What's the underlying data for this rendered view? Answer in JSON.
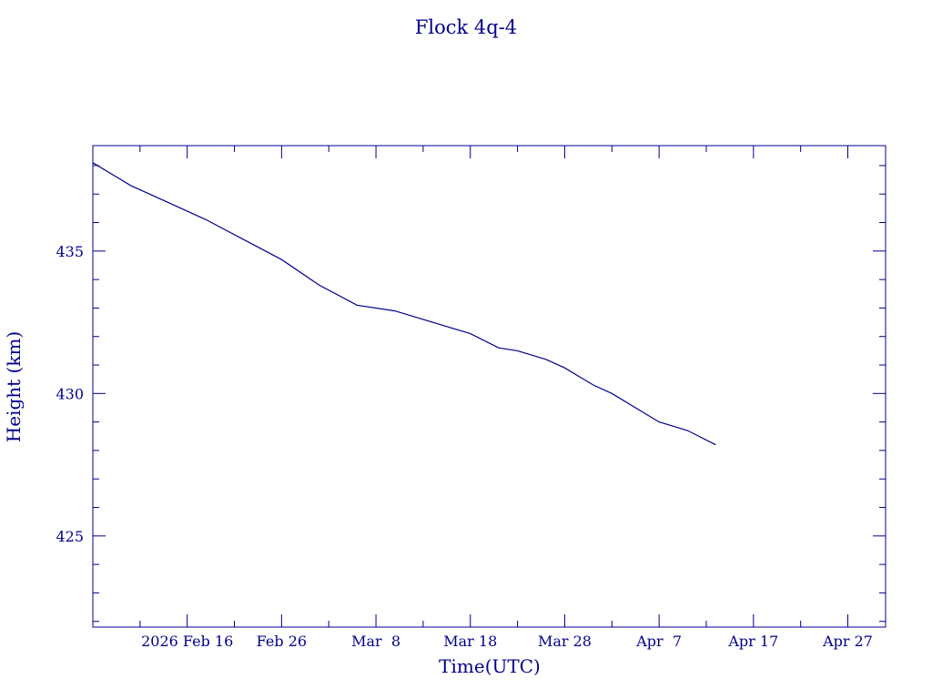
{
  "chart_data": {
    "type": "line",
    "title": "Flock 4q-4",
    "xlabel": "Time(UTC)",
    "ylabel": "Height (km)",
    "color": "#00008b",
    "x_range": [
      "2026-02-06",
      "2026-05-01"
    ],
    "ylim": [
      421.8,
      438.7
    ],
    "y_ticks": [
      425,
      430,
      435
    ],
    "x_ticks": [
      {
        "date": "2026-02-16",
        "label": "2026 Feb 16"
      },
      {
        "date": "2026-02-26",
        "label": "Feb 26"
      },
      {
        "date": "2026-03-08",
        "label": "Mar  8"
      },
      {
        "date": "2026-03-18",
        "label": "Mar 18"
      },
      {
        "date": "2026-03-28",
        "label": "Mar 28"
      },
      {
        "date": "2026-04-07",
        "label": "Apr  7"
      },
      {
        "date": "2026-04-17",
        "label": "Apr 17"
      },
      {
        "date": "2026-04-27",
        "label": "Apr 27"
      }
    ],
    "grid": false,
    "series": [
      {
        "x": [
          "2026-02-06",
          "2026-02-10",
          "2026-02-14",
          "2026-02-18",
          "2026-02-22",
          "2026-02-26",
          "2026-03-02",
          "2026-03-06",
          "2026-03-10",
          "2026-03-14",
          "2026-03-16",
          "2026-03-18",
          "2026-03-21",
          "2026-03-23",
          "2026-03-26",
          "2026-03-28",
          "2026-03-31",
          "2026-04-02",
          "2026-04-05",
          "2026-04-07",
          "2026-04-10",
          "2026-04-13"
        ],
        "y": [
          438.1,
          437.3,
          436.7,
          436.1,
          435.4,
          434.7,
          433.8,
          433.1,
          432.9,
          432.5,
          432.3,
          432.1,
          431.6,
          431.5,
          431.2,
          430.9,
          430.3,
          430.0,
          429.4,
          429.0,
          428.7,
          428.2
        ]
      }
    ]
  }
}
